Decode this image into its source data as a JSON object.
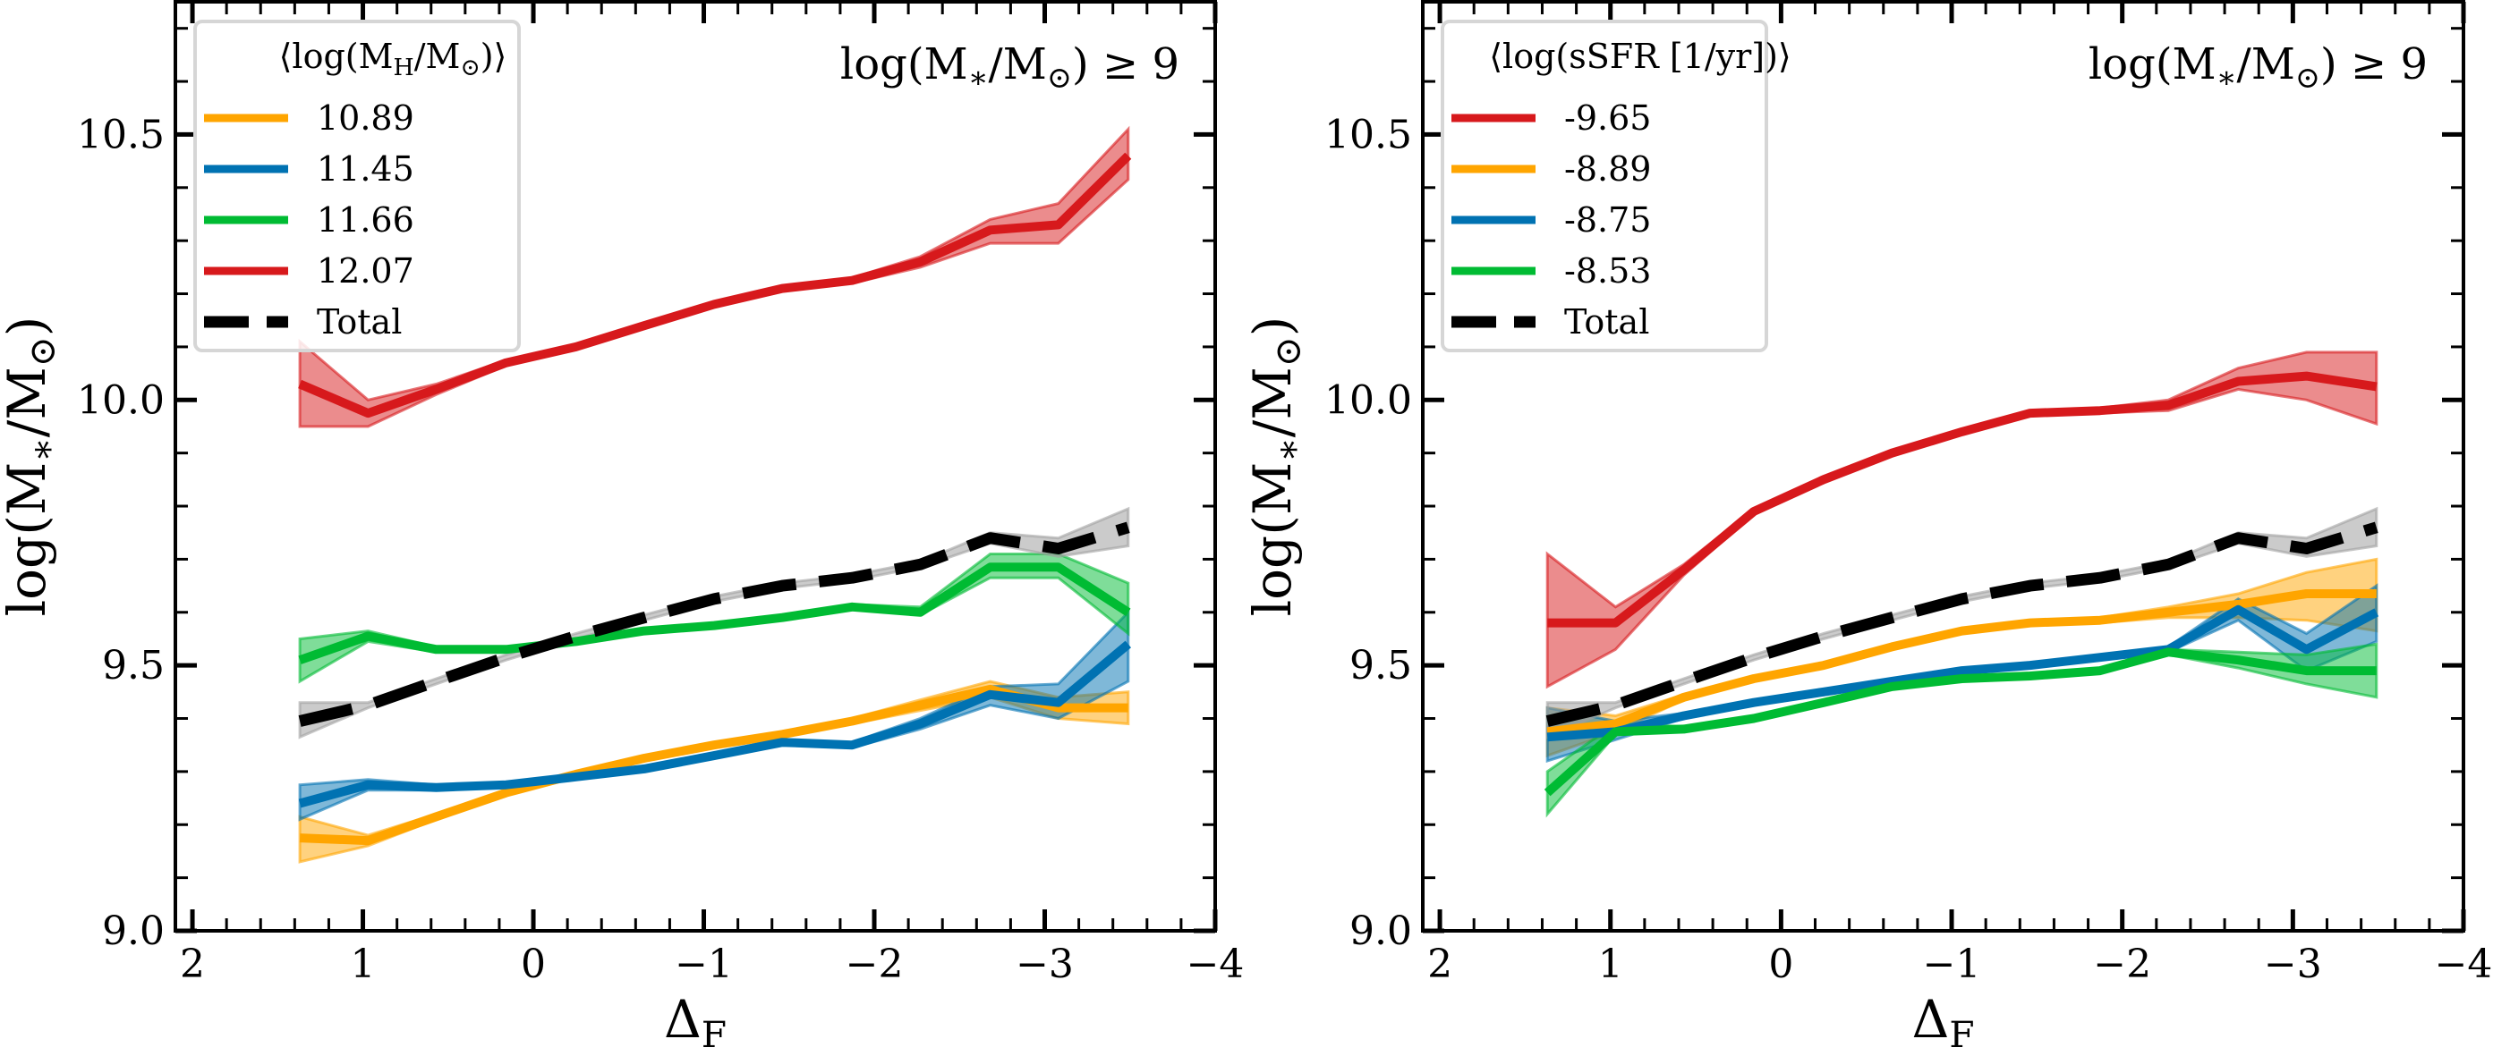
{
  "chart_data": [
    {
      "type": "line",
      "panel": "left",
      "title": "",
      "annotation": "log(M*/M☉) ≥ 9",
      "xlabel": "ΔF",
      "ylabel": "log(M*/M☉)",
      "xlim": [
        2.1,
        -4.0
      ],
      "ylim": [
        9.0,
        10.75
      ],
      "xticks": [
        2,
        1,
        0,
        -1,
        -2,
        -3,
        -4
      ],
      "xtick_labels": [
        "2",
        "1",
        "0",
        "−1",
        "−2",
        "−3",
        "−4"
      ],
      "yticks": [
        9.0,
        9.5,
        10.0,
        10.5
      ],
      "ytick_labels": [
        "9.0",
        "9.5",
        "10.0",
        "10.5"
      ],
      "grid": false,
      "legend_title": "⟨log(M_H/M☉)⟩",
      "legend_placement": "top-left",
      "x": [
        1.37,
        0.97,
        0.57,
        0.16,
        -0.25,
        -0.65,
        -1.06,
        -1.46,
        -1.87,
        -2.27,
        -2.68,
        -3.08,
        -3.49
      ],
      "series": [
        {
          "name": "10.89",
          "color": "#ffa500",
          "values": [
            9.175,
            9.17,
            9.215,
            9.26,
            9.295,
            9.325,
            9.35,
            9.37,
            9.395,
            9.425,
            9.455,
            9.42,
            9.42
          ],
          "lower": [
            9.13,
            9.16,
            9.21,
            9.255,
            9.29,
            9.32,
            9.345,
            9.365,
            9.39,
            9.415,
            9.44,
            9.4,
            9.39
          ],
          "upper": [
            9.215,
            9.18,
            9.22,
            9.265,
            9.3,
            9.33,
            9.355,
            9.375,
            9.4,
            9.435,
            9.47,
            9.44,
            9.45
          ]
        },
        {
          "name": "11.45",
          "color": "#0072b2",
          "values": [
            9.24,
            9.275,
            9.27,
            9.275,
            9.29,
            9.305,
            9.33,
            9.355,
            9.35,
            9.39,
            9.445,
            9.43,
            9.54
          ],
          "lower": [
            9.21,
            9.265,
            9.265,
            9.27,
            9.285,
            9.3,
            9.325,
            9.35,
            9.345,
            9.38,
            9.425,
            9.4,
            9.47
          ],
          "upper": [
            9.275,
            9.285,
            9.275,
            9.28,
            9.295,
            9.31,
            9.335,
            9.36,
            9.355,
            9.4,
            9.46,
            9.465,
            9.6
          ]
        },
        {
          "name": "11.66",
          "color": "#00bb33",
          "values": [
            9.51,
            9.555,
            9.53,
            9.53,
            9.545,
            9.565,
            9.575,
            9.59,
            9.61,
            9.6,
            9.685,
            9.685,
            9.6
          ],
          "lower": [
            9.47,
            9.545,
            9.525,
            9.525,
            9.54,
            9.56,
            9.57,
            9.585,
            9.605,
            9.595,
            9.665,
            9.665,
            9.56
          ],
          "upper": [
            9.55,
            9.565,
            9.535,
            9.535,
            9.55,
            9.57,
            9.58,
            9.595,
            9.615,
            9.61,
            9.71,
            9.71,
            9.655
          ]
        },
        {
          "name": "12.07",
          "color": "#d7191c",
          "values": [
            10.03,
            9.975,
            10.02,
            10.07,
            10.1,
            10.14,
            10.18,
            10.21,
            10.225,
            10.26,
            10.32,
            10.33,
            10.46
          ],
          "lower": [
            9.95,
            9.95,
            10.01,
            10.065,
            10.095,
            10.135,
            10.175,
            10.205,
            10.22,
            10.25,
            10.295,
            10.295,
            10.415
          ],
          "upper": [
            10.11,
            10.0,
            10.03,
            10.075,
            10.105,
            10.145,
            10.185,
            10.215,
            10.23,
            10.27,
            10.34,
            10.37,
            10.51
          ]
        },
        {
          "name": "Total",
          "color": "#000000",
          "dashed": true,
          "values": [
            9.395,
            9.425,
            9.47,
            9.515,
            9.555,
            9.59,
            9.625,
            9.65,
            9.665,
            9.69,
            9.74,
            9.72,
            9.76
          ],
          "lower": [
            9.365,
            9.42,
            9.465,
            9.51,
            9.55,
            9.585,
            9.62,
            9.645,
            9.66,
            9.685,
            9.73,
            9.705,
            9.725
          ],
          "upper": [
            9.43,
            9.43,
            9.475,
            9.52,
            9.56,
            9.595,
            9.63,
            9.655,
            9.67,
            9.695,
            9.75,
            9.74,
            9.795
          ]
        }
      ]
    },
    {
      "type": "line",
      "panel": "right",
      "title": "",
      "annotation": "log(M*/M☉) ≥ 9",
      "xlabel": "ΔF",
      "ylabel": "log(M*/M☉)",
      "xlim": [
        2.1,
        -4.0
      ],
      "ylim": [
        9.0,
        10.75
      ],
      "xticks": [
        2,
        1,
        0,
        -1,
        -2,
        -3,
        -4
      ],
      "xtick_labels": [
        "2",
        "1",
        "0",
        "−1",
        "−2",
        "−3",
        "−4"
      ],
      "yticks": [
        9.0,
        9.5,
        10.0,
        10.5
      ],
      "ytick_labels": [
        "9.0",
        "9.5",
        "10.0",
        "10.5"
      ],
      "grid": false,
      "legend_title": "⟨log(sSFR [1/yr])⟩",
      "legend_placement": "top-left",
      "x": [
        1.37,
        0.97,
        0.57,
        0.16,
        -0.25,
        -0.65,
        -1.06,
        -1.46,
        -1.87,
        -2.27,
        -2.68,
        -3.08,
        -3.49
      ],
      "series": [
        {
          "name": "-9.65",
          "color": "#d7191c",
          "values": [
            9.58,
            9.58,
            9.68,
            9.79,
            9.85,
            9.9,
            9.94,
            9.975,
            9.98,
            9.99,
            10.035,
            10.045,
            10.025
          ],
          "lower": [
            9.46,
            9.53,
            9.67,
            9.785,
            9.845,
            9.895,
            9.935,
            9.97,
            9.975,
            9.98,
            10.02,
            10.0,
            9.955
          ],
          "upper": [
            9.71,
            9.61,
            9.69,
            9.795,
            9.855,
            9.905,
            9.945,
            9.98,
            9.985,
            10.0,
            10.06,
            10.09,
            10.09
          ]
        },
        {
          "name": "-8.89",
          "color": "#ffa500",
          "values": [
            9.375,
            9.39,
            9.44,
            9.475,
            9.5,
            9.535,
            9.565,
            9.58,
            9.585,
            9.6,
            9.615,
            9.635,
            9.635
          ],
          "lower": [
            9.33,
            9.375,
            9.435,
            9.47,
            9.495,
            9.53,
            9.56,
            9.575,
            9.58,
            9.59,
            9.59,
            9.585,
            9.565
          ],
          "upper": [
            9.42,
            9.405,
            9.445,
            9.48,
            9.505,
            9.54,
            9.57,
            9.585,
            9.59,
            9.61,
            9.635,
            9.675,
            9.7
          ]
        },
        {
          "name": "-8.75",
          "color": "#0072b2",
          "values": [
            9.365,
            9.375,
            9.405,
            9.43,
            9.45,
            9.47,
            9.49,
            9.5,
            9.515,
            9.53,
            9.605,
            9.53,
            9.6
          ],
          "lower": [
            9.32,
            9.36,
            9.4,
            9.425,
            9.445,
            9.465,
            9.485,
            9.495,
            9.51,
            9.525,
            9.585,
            9.49,
            9.545
          ],
          "upper": [
            9.42,
            9.395,
            9.41,
            9.435,
            9.455,
            9.475,
            9.495,
            9.505,
            9.52,
            9.535,
            9.625,
            9.56,
            9.65
          ]
        },
        {
          "name": "-8.53",
          "color": "#00bb33",
          "values": [
            9.26,
            9.375,
            9.38,
            9.4,
            9.43,
            9.46,
            9.475,
            9.48,
            9.49,
            9.525,
            9.51,
            9.49,
            9.49
          ],
          "lower": [
            9.22,
            9.37,
            9.375,
            9.395,
            9.425,
            9.455,
            9.47,
            9.475,
            9.485,
            9.52,
            9.495,
            9.465,
            9.44
          ],
          "upper": [
            9.3,
            9.39,
            9.385,
            9.405,
            9.435,
            9.465,
            9.48,
            9.485,
            9.495,
            9.53,
            9.525,
            9.52,
            9.54
          ]
        },
        {
          "name": "Total",
          "color": "#000000",
          "dashed": true,
          "values": [
            9.395,
            9.425,
            9.47,
            9.515,
            9.555,
            9.59,
            9.625,
            9.65,
            9.665,
            9.69,
            9.74,
            9.72,
            9.76
          ],
          "lower": [
            9.365,
            9.42,
            9.465,
            9.51,
            9.55,
            9.585,
            9.62,
            9.645,
            9.66,
            9.685,
            9.73,
            9.705,
            9.725
          ],
          "upper": [
            9.43,
            9.43,
            9.475,
            9.52,
            9.56,
            9.595,
            9.63,
            9.655,
            9.67,
            9.695,
            9.75,
            9.74,
            9.795
          ]
        }
      ]
    }
  ]
}
